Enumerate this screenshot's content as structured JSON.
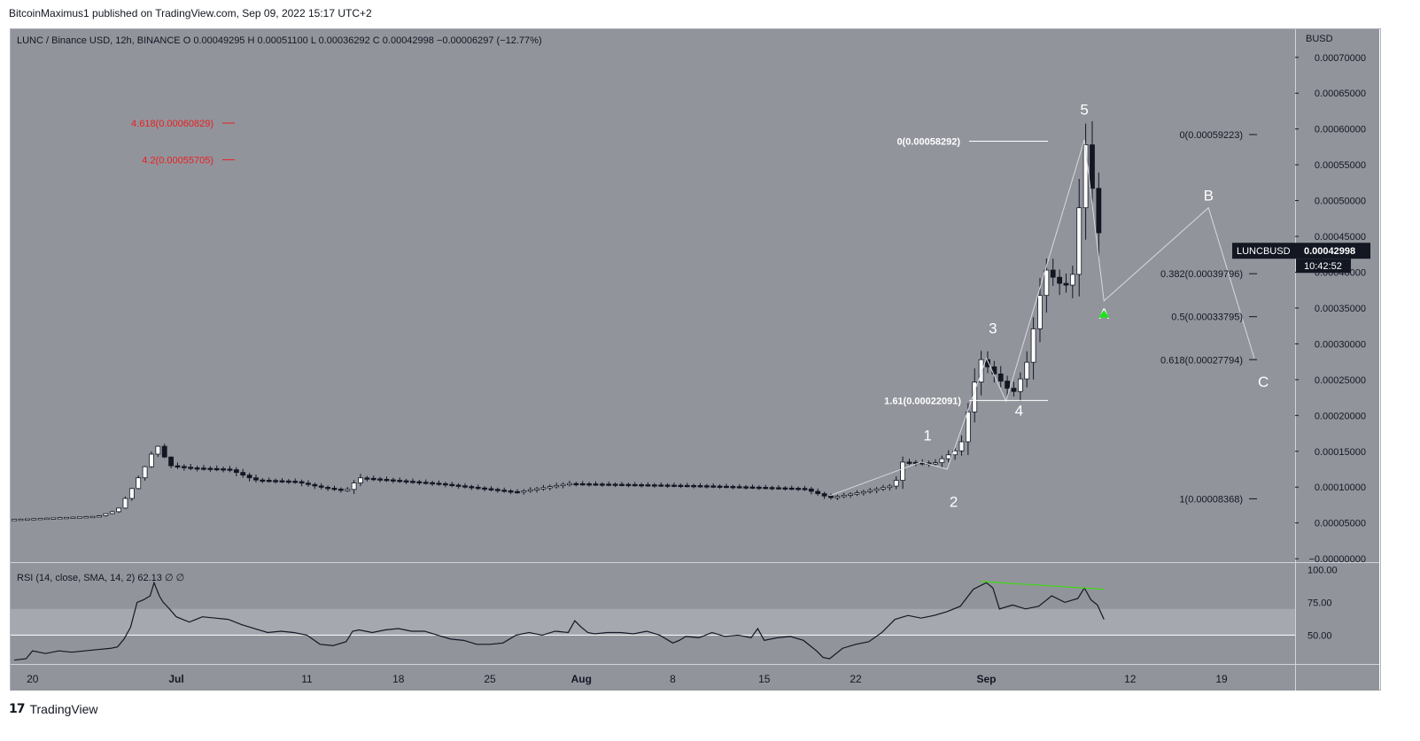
{
  "header": {
    "publisher": "BitcoinMaximus1 published on TradingView.com, Sep 09, 2022 15:17 UTC+2"
  },
  "footer": {
    "brand": "TradingView",
    "logo_icon": "tradingview-logo-icon"
  },
  "colors": {
    "background": "#92949c",
    "rsi_band": "#a6a8af",
    "candle_up": "#ffffff",
    "candle_down": "#131722",
    "fib_red": "#e8211f",
    "label_white": "#ffffff",
    "rsi_line": "#131722",
    "divergence": "#3fd916",
    "arrow": "#1de21d",
    "price_tag_bg": "#131722"
  },
  "chart_data": {
    "type": "candlestick",
    "symbol_line": {
      "name": "LUNC / Binance USD, 12h, BINANCE",
      "o_label": "O",
      "o": "0.00049295",
      "h_label": "H",
      "h": "0.00051100",
      "l_label": "L",
      "l": "0.00036292",
      "c_label": "C",
      "c": "0.00042998",
      "change": "−0.00006297 (−12.77%)"
    },
    "currency": "BUSD",
    "y_ticks": [
      "0.00070000",
      "0.00065000",
      "0.00060000",
      "0.00055000",
      "0.00050000",
      "0.00045000",
      "0.00040000",
      "0.00035000",
      "0.00030000",
      "0.00025000",
      "0.00020000",
      "0.00015000",
      "0.00010000",
      "0.00005000",
      "−0.00000000"
    ],
    "y_tick_values": [
      0.0007,
      0.00065,
      0.0006,
      0.00055,
      0.0005,
      0.00045,
      0.0004,
      0.00035,
      0.0003,
      0.00025,
      0.0002,
      0.00015,
      0.0001,
      5e-05,
      0
    ],
    "ylim": [
      -4.8e-06,
      0.0007393
    ],
    "x_ticks": [
      {
        "label": "20",
        "day": -11
      },
      {
        "label": "Jul",
        "day": 0
      },
      {
        "label": "11",
        "day": 10
      },
      {
        "label": "18",
        "day": 17
      },
      {
        "label": "25",
        "day": 24
      },
      {
        "label": "Aug",
        "day": 31
      },
      {
        "label": "8",
        "day": 38
      },
      {
        "label": "15",
        "day": 45
      },
      {
        "label": "22",
        "day": 52
      },
      {
        "label": "Sep",
        "day": 62
      },
      {
        "label": "12",
        "day": 73
      },
      {
        "label": "19",
        "day": 80
      }
    ],
    "time_unit": "days since Jul 1, 2022",
    "price_tag": {
      "symbol": "LUNCBUSD",
      "value": "0.00042998",
      "countdown": "10:42:52",
      "price": 0.00042998
    },
    "candles_key_points": [
      {
        "day": -12.4,
        "price": 5.5e-05
      },
      {
        "day": -6,
        "price": 5.95e-05
      },
      {
        "day": -4.5,
        "price": 6.8e-05
      },
      {
        "day": -3.5,
        "price": 9.5e-05
      },
      {
        "day": -2.5,
        "price": 0.000125
      },
      {
        "day": -1.5,
        "price": 0.00016
      },
      {
        "day": -0.5,
        "price": 0.00013
      },
      {
        "day": 1,
        "price": 0.000127
      },
      {
        "day": 4,
        "price": 0.000125
      },
      {
        "day": 6,
        "price": 0.00011
      },
      {
        "day": 9,
        "price": 0.000108
      },
      {
        "day": 11,
        "price": 0.0001
      },
      {
        "day": 13,
        "price": 9.5e-05
      },
      {
        "day": 14,
        "price": 0.000113
      },
      {
        "day": 20,
        "price": 0.000105
      },
      {
        "day": 26,
        "price": 9.3e-05
      },
      {
        "day": 30,
        "price": 0.000105
      },
      {
        "day": 40,
        "price": 0.000102
      },
      {
        "day": 48,
        "price": 9.8e-05
      },
      {
        "day": 50,
        "price": 8.5e-05
      },
      {
        "day": 53,
        "price": 9.5e-05
      },
      {
        "day": 55,
        "price": 0.000103
      },
      {
        "day": 55.5,
        "price": 0.000135
      },
      {
        "day": 58,
        "price": 0.000133
      },
      {
        "day": 60,
        "price": 0.000155
      },
      {
        "day": 61.5,
        "price": 0.00028
      },
      {
        "day": 63,
        "price": 0.00025
      },
      {
        "day": 64,
        "price": 0.00023
      },
      {
        "day": 65,
        "price": 0.000265
      },
      {
        "day": 66.5,
        "price": 0.000405
      },
      {
        "day": 67.5,
        "price": 0.000385
      },
      {
        "day": 68.5,
        "price": 0.00038
      },
      {
        "day": 69,
        "price": 0.000465
      },
      {
        "day": 69.5,
        "price": 0.00059
      },
      {
        "day": 70.2,
        "price": 0.000505
      },
      {
        "day": 70.8,
        "price": 0.00043
      }
    ],
    "fib_extensions": [
      {
        "label": "4.618(0.00060829)",
        "price": 0.00060829,
        "color": "#e8211f"
      },
      {
        "label": "4.2(0.00055705)",
        "price": 0.00055705,
        "color": "#e8211f"
      }
    ],
    "fib_levels_wave3": [
      {
        "label": "0(0.00058292)",
        "price": 0.00058292
      },
      {
        "label": "1.61(0.00022091)",
        "price": 0.00022091
      }
    ],
    "fib_retracement": [
      {
        "label": "0(0.00059223)",
        "price": 0.00059223
      },
      {
        "label": "0.382(0.00039796)",
        "price": 0.00039796
      },
      {
        "label": "0.5(0.00033795)",
        "price": 0.00033795
      },
      {
        "label": "0.618(0.00027794)",
        "price": 0.00027794
      },
      {
        "label": "1(0.00008368)",
        "price": 8.368e-05
      }
    ],
    "wave_labels": [
      {
        "label": "1",
        "day": 57.5,
        "price": 0.000165
      },
      {
        "label": "2",
        "day": 59.5,
        "price": 7.25e-05
      },
      {
        "label": "3",
        "day": 62.5,
        "price": 0.000315
      },
      {
        "label": "4",
        "day": 64.5,
        "price": 0.0002
      },
      {
        "label": "5",
        "day": 69.5,
        "price": 0.00062
      },
      {
        "label": "A",
        "day": 71,
        "price": 0.000335
      },
      {
        "label": "B",
        "day": 79,
        "price": 0.0005
      },
      {
        "label": "C",
        "day": 83.2,
        "price": 0.00024
      }
    ],
    "wave_path": [
      {
        "day": 50,
        "price": 8.8e-05
      },
      {
        "day": 57,
        "price": 0.000135
      },
      {
        "day": 59,
        "price": 0.000125
      },
      {
        "day": 62,
        "price": 0.00028
      },
      {
        "day": 63.5,
        "price": 0.00022
      },
      {
        "day": 69.5,
        "price": 0.000585
      },
      {
        "day": 71,
        "price": 0.00036
      },
      {
        "day": 79,
        "price": 0.00049
      },
      {
        "day": 82.5,
        "price": 0.00028
      }
    ],
    "rsi": {
      "label": "RSI (14, close, SMA, 14, 2)",
      "value": "62.13",
      "extra1": "∅",
      "extra2": "∅",
      "ticks": [
        "100.00",
        "75.00",
        "50.00"
      ],
      "tick_values": [
        100,
        75,
        50
      ],
      "ylim": [
        28,
        105
      ],
      "band": [
        50,
        70
      ],
      "points": [
        [
          -12.4,
          31
        ],
        [
          -11.5,
          32
        ],
        [
          -11,
          38
        ],
        [
          -10,
          36
        ],
        [
          -9,
          38
        ],
        [
          -8,
          37
        ],
        [
          -7,
          38
        ],
        [
          -6,
          39
        ],
        [
          -5,
          40
        ],
        [
          -4.5,
          41
        ],
        [
          -4,
          47
        ],
        [
          -3.5,
          56
        ],
        [
          -3,
          75
        ],
        [
          -2.5,
          77
        ],
        [
          -2,
          80
        ],
        [
          -1.7,
          90
        ],
        [
          -1.3,
          80
        ],
        [
          -1,
          75
        ],
        [
          -0.7,
          72
        ],
        [
          0,
          64
        ],
        [
          0.5,
          62
        ],
        [
          1,
          60
        ],
        [
          1.5,
          62
        ],
        [
          2,
          64
        ],
        [
          3,
          63
        ],
        [
          4,
          62
        ],
        [
          5,
          58
        ],
        [
          6,
          55
        ],
        [
          7,
          52
        ],
        [
          8,
          53
        ],
        [
          9,
          52
        ],
        [
          10,
          50
        ],
        [
          11,
          43
        ],
        [
          12,
          42
        ],
        [
          13,
          45
        ],
        [
          13.5,
          53
        ],
        [
          14,
          54
        ],
        [
          15,
          52
        ],
        [
          16,
          54
        ],
        [
          17,
          55
        ],
        [
          18,
          53
        ],
        [
          19,
          53
        ],
        [
          20,
          50
        ],
        [
          21,
          47
        ],
        [
          22,
          46
        ],
        [
          23,
          43
        ],
        [
          24,
          43
        ],
        [
          25,
          44
        ],
        [
          26,
          50
        ],
        [
          27,
          52
        ],
        [
          28,
          50
        ],
        [
          29,
          53
        ],
        [
          30,
          52
        ],
        [
          30.5,
          61
        ],
        [
          31,
          56
        ],
        [
          31.5,
          52
        ],
        [
          32,
          51
        ],
        [
          33,
          52
        ],
        [
          34,
          52
        ],
        [
          35,
          51
        ],
        [
          36,
          53
        ],
        [
          37,
          50
        ],
        [
          38,
          44
        ],
        [
          38.5,
          46
        ],
        [
          39,
          49
        ],
        [
          40,
          48
        ],
        [
          41,
          52
        ],
        [
          42,
          49
        ],
        [
          43,
          50
        ],
        [
          44,
          48
        ],
        [
          44.5,
          55
        ],
        [
          45,
          46
        ],
        [
          46,
          48
        ],
        [
          47,
          49
        ],
        [
          48,
          46
        ],
        [
          49,
          38
        ],
        [
          49.5,
          33
        ],
        [
          50,
          32
        ],
        [
          51,
          40
        ],
        [
          52,
          43
        ],
        [
          53,
          45
        ],
        [
          54,
          52
        ],
        [
          55,
          62
        ],
        [
          56,
          65
        ],
        [
          57,
          63
        ],
        [
          58,
          65
        ],
        [
          59,
          68
        ],
        [
          60,
          72
        ],
        [
          61,
          85
        ],
        [
          62,
          90
        ],
        [
          62.5,
          86
        ],
        [
          63,
          70
        ],
        [
          64,
          73
        ],
        [
          65,
          70
        ],
        [
          66,
          72
        ],
        [
          66.5,
          76
        ],
        [
          67,
          80
        ],
        [
          68,
          75
        ],
        [
          69,
          78
        ],
        [
          69.5,
          86
        ],
        [
          70,
          77
        ],
        [
          70.5,
          73
        ],
        [
          71,
          62
        ]
      ],
      "divergence_line": [
        [
          61.5,
          91
        ],
        [
          71,
          85
        ]
      ]
    }
  }
}
